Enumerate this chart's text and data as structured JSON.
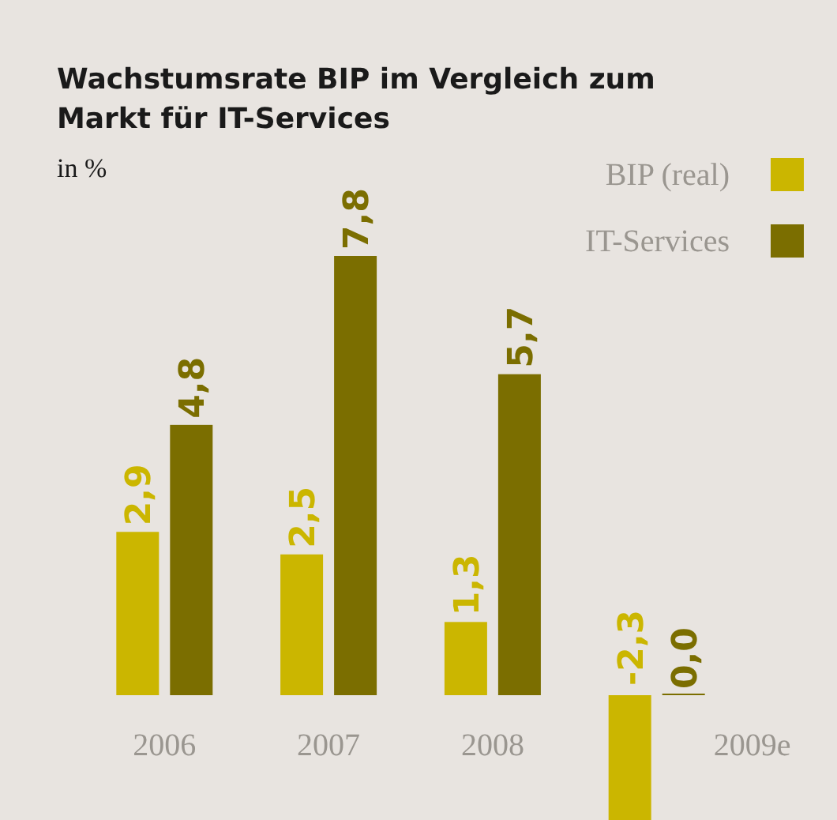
{
  "chart_data": {
    "type": "bar",
    "title": "Wachstumsrate BIP im Vergleich zum Markt für IT-Services",
    "subtitle": "in %",
    "categories": [
      "2006",
      "2007",
      "2008",
      "2009e"
    ],
    "series": [
      {
        "name": "BIP (real)",
        "color": "#cbb600",
        "values": [
          2.9,
          2.5,
          1.3,
          -2.3
        ],
        "value_labels": [
          "2,9",
          "2,5",
          "1,3",
          "-2,3"
        ]
      },
      {
        "name": "IT-Services",
        "color": "#7b6e00",
        "values": [
          4.8,
          7.8,
          5.7,
          0.0
        ],
        "value_labels": [
          "4,8",
          "7,8",
          "5,7",
          "0,0"
        ]
      }
    ],
    "legend": "top right"
  }
}
